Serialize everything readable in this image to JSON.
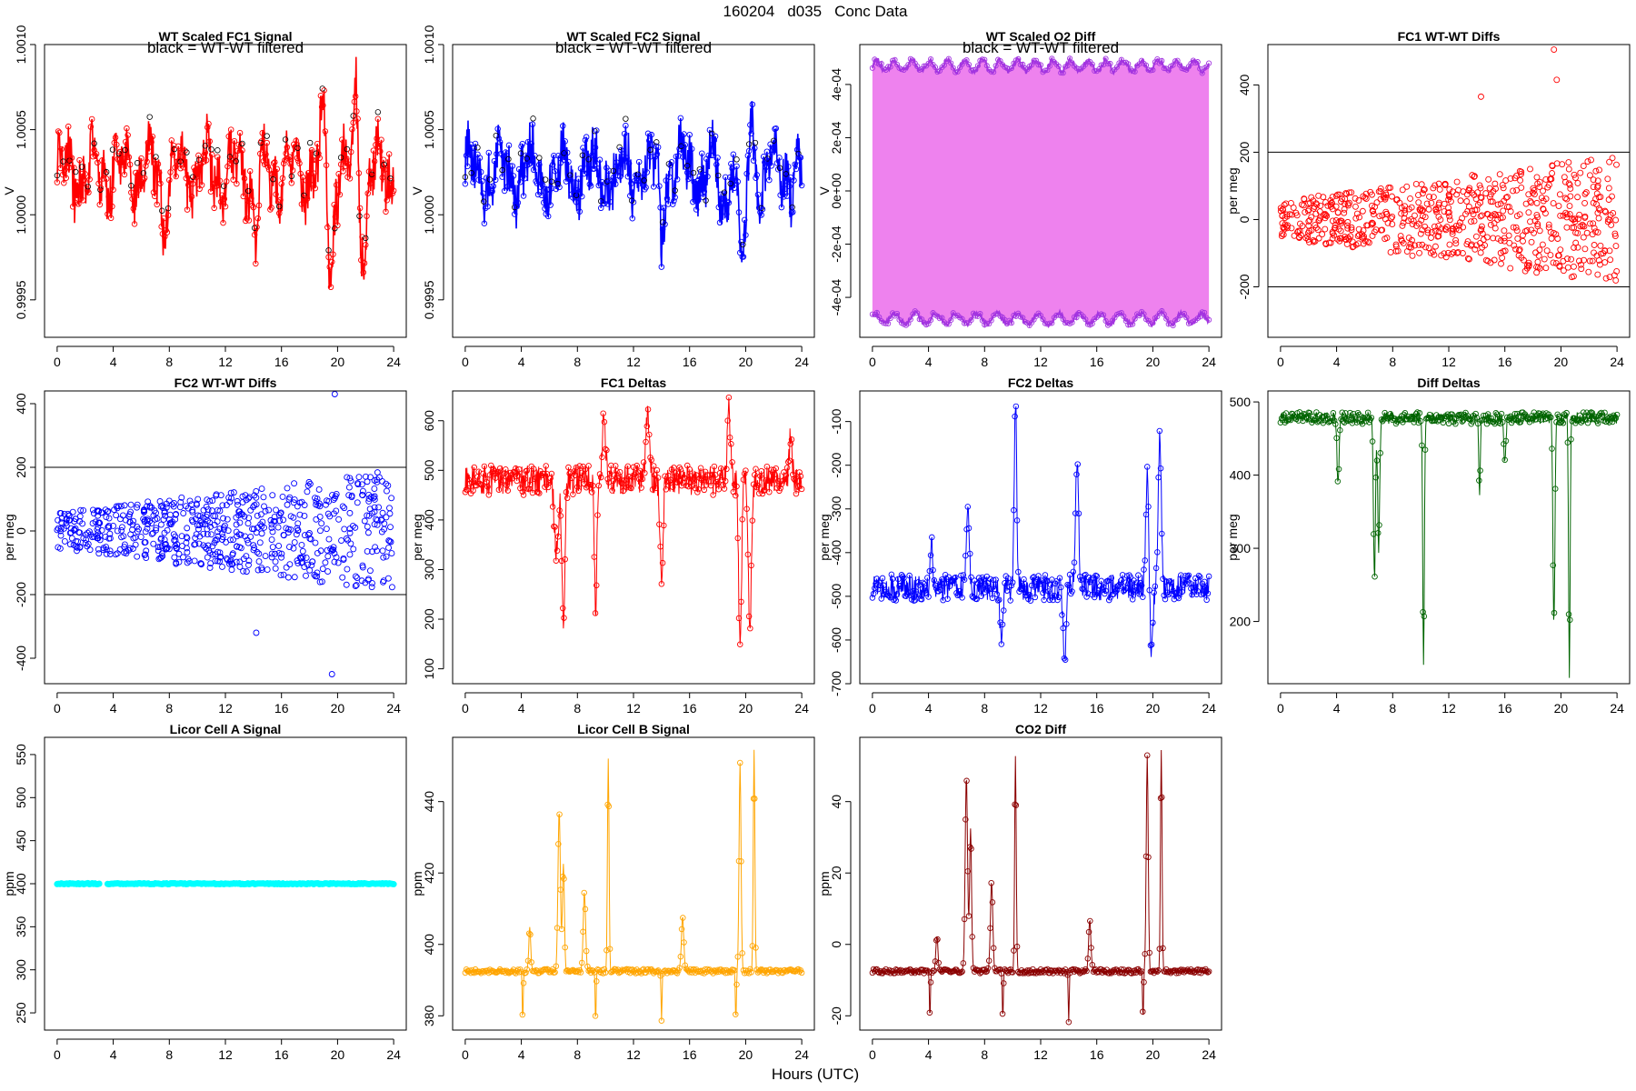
{
  "figure": {
    "date": "160204",
    "id": "d035",
    "label": "Conc Data",
    "xlabel": "Hours (UTC)"
  },
  "chart_data": [
    {
      "key": "fc1",
      "type": "line",
      "title": "WT Scaled FC1 Signal",
      "ylabel": "V",
      "note": "black = WT-WT filtered",
      "color": "#ff0000",
      "xlim": [
        -0.9,
        24.9
      ],
      "ylim": [
        0.99928,
        1.001
      ],
      "xticks": [
        0,
        4,
        8,
        12,
        16,
        20,
        24
      ],
      "yticks": [
        0.9995,
        1.0,
        1.0005,
        1.001
      ],
      "ytick_labels": [
        "0.9995",
        "1.0000",
        "1.0005",
        "1.0010"
      ],
      "ytick_rotated": true,
      "pattern": "fc1"
    },
    {
      "key": "fc2",
      "type": "line",
      "title": "WT Scaled FC2 Signal",
      "ylabel": "V",
      "note": "black = WT-WT filtered",
      "color": "#0000ff",
      "xlim": [
        -0.9,
        24.9
      ],
      "ylim": [
        0.99928,
        1.001
      ],
      "xticks": [
        0,
        4,
        8,
        12,
        16,
        20,
        24
      ],
      "yticks": [
        0.9995,
        1.0,
        1.0005,
        1.001
      ],
      "ytick_labels": [
        "0.9995",
        "1.0000",
        "1.0005",
        "1.0010"
      ],
      "ytick_rotated": true,
      "pattern": "fc2"
    },
    {
      "key": "o2",
      "type": "line",
      "title": "WT Scaled O2 Diff",
      "ylabel": "V",
      "note": "black = WT-WT filtered",
      "color": "#a335e0",
      "fill": "#ee82ee",
      "xlim": [
        -0.9,
        24.9
      ],
      "ylim": [
        -0.00055,
        0.00055
      ],
      "xticks": [
        0,
        4,
        8,
        12,
        16,
        20,
        24
      ],
      "yticks": [
        -0.0004,
        -0.0002,
        0,
        0.0002,
        0.0004
      ],
      "ytick_labels": [
        "-4e-04",
        "-2e-04",
        "0e+00",
        "2e-04",
        "4e-04"
      ],
      "ytick_rotated": true,
      "pattern": "o2"
    },
    {
      "key": "fc1wt",
      "type": "scatter",
      "title": "FC1 WT-WT Diffs",
      "ylabel": "per meg",
      "color": "#ff0000",
      "xlim": [
        -0.9,
        24.9
      ],
      "ylim": [
        -350,
        520
      ],
      "xticks": [
        0,
        4,
        8,
        12,
        16,
        20,
        24
      ],
      "yticks": [
        -200,
        0,
        200,
        400
      ],
      "ytick_labels": [
        "-200",
        "0",
        "200",
        "400"
      ],
      "ytick_rotated": true,
      "hlines": [
        200,
        -200
      ],
      "pattern": "scatter1"
    },
    {
      "key": "fc2wt",
      "type": "scatter",
      "title": "FC2 WT-WT Diffs",
      "ylabel": "per meg",
      "color": "#0000ff",
      "xlim": [
        -0.9,
        24.9
      ],
      "ylim": [
        -480,
        440
      ],
      "xticks": [
        0,
        4,
        8,
        12,
        16,
        20,
        24
      ],
      "yticks": [
        -400,
        -200,
        0,
        200,
        400
      ],
      "ytick_labels": [
        "-400",
        "-200",
        "0",
        "200",
        "400"
      ],
      "ytick_rotated": true,
      "hlines": [
        200,
        -200
      ],
      "pattern": "scatter2"
    },
    {
      "key": "fc1d",
      "type": "line",
      "title": "FC1 Deltas",
      "ylabel": "per meg",
      "color": "#ff0000",
      "xlim": [
        -0.9,
        24.9
      ],
      "ylim": [
        70,
        660
      ],
      "xticks": [
        0,
        4,
        8,
        12,
        16,
        20,
        24
      ],
      "yticks": [
        100,
        200,
        300,
        400,
        500,
        600
      ],
      "ytick_labels": [
        "100",
        "200",
        "300",
        "400",
        "500",
        "600"
      ],
      "ytick_rotated": true,
      "pattern": "fc1d"
    },
    {
      "key": "fc2d",
      "type": "line",
      "title": "FC2 Deltas",
      "ylabel": "per meg",
      "color": "#0000ff",
      "xlim": [
        -0.9,
        24.9
      ],
      "ylim": [
        -700,
        -30
      ],
      "xticks": [
        0,
        4,
        8,
        12,
        16,
        20,
        24
      ],
      "yticks": [
        -700,
        -600,
        -500,
        -400,
        -300,
        -200,
        -100
      ],
      "ytick_labels": [
        "-700",
        "-600",
        "-500",
        "-400",
        "-300",
        "-200",
        "-100"
      ],
      "ytick_rotated": true,
      "pattern": "fc2d"
    },
    {
      "key": "diffd",
      "type": "line",
      "title": "Diff Deltas",
      "ylabel": "per meg",
      "color": "#006400",
      "xlim": [
        -0.9,
        24.9
      ],
      "ylim": [
        115,
        515
      ],
      "xticks": [
        0,
        4,
        8,
        12,
        16,
        20,
        24
      ],
      "yticks": [
        200,
        300,
        400,
        500
      ],
      "ytick_labels": [
        "200",
        "300",
        "400",
        "500"
      ],
      "ytick_rotated": false,
      "pattern": "diffd"
    },
    {
      "key": "licA",
      "type": "line",
      "title": "Licor Cell A Signal",
      "ylabel": "ppm",
      "color": "#00ffff",
      "xlim": [
        -0.9,
        24.9
      ],
      "ylim": [
        230,
        570
      ],
      "xticks": [
        0,
        4,
        8,
        12,
        16,
        20,
        24
      ],
      "yticks": [
        250,
        300,
        350,
        400,
        450,
        500,
        550
      ],
      "ytick_labels": [
        "250",
        "300",
        "350",
        "400",
        "450",
        "500",
        "550"
      ],
      "ytick_rotated": true,
      "pattern": "licA"
    },
    {
      "key": "licB",
      "type": "line",
      "title": "Licor Cell B Signal",
      "ylabel": "ppm",
      "color": "#ffa500",
      "xlim": [
        -0.9,
        24.9
      ],
      "ylim": [
        376,
        458
      ],
      "xticks": [
        0,
        4,
        8,
        12,
        16,
        20,
        24
      ],
      "yticks": [
        380,
        400,
        420,
        440
      ],
      "ytick_labels": [
        "380",
        "400",
        "420",
        "440"
      ],
      "ytick_rotated": true,
      "pattern": "licB"
    },
    {
      "key": "co2",
      "type": "line",
      "title": "CO2 Diff",
      "ylabel": "ppm",
      "color": "#8b0000",
      "xlim": [
        -0.9,
        24.9
      ],
      "ylim": [
        -24,
        58
      ],
      "xticks": [
        0,
        4,
        8,
        12,
        16,
        20,
        24
      ],
      "yticks": [
        -20,
        0,
        20,
        40
      ],
      "ytick_labels": [
        "-20",
        "0",
        "20",
        "40"
      ],
      "ytick_rotated": true,
      "pattern": "co2"
    }
  ]
}
